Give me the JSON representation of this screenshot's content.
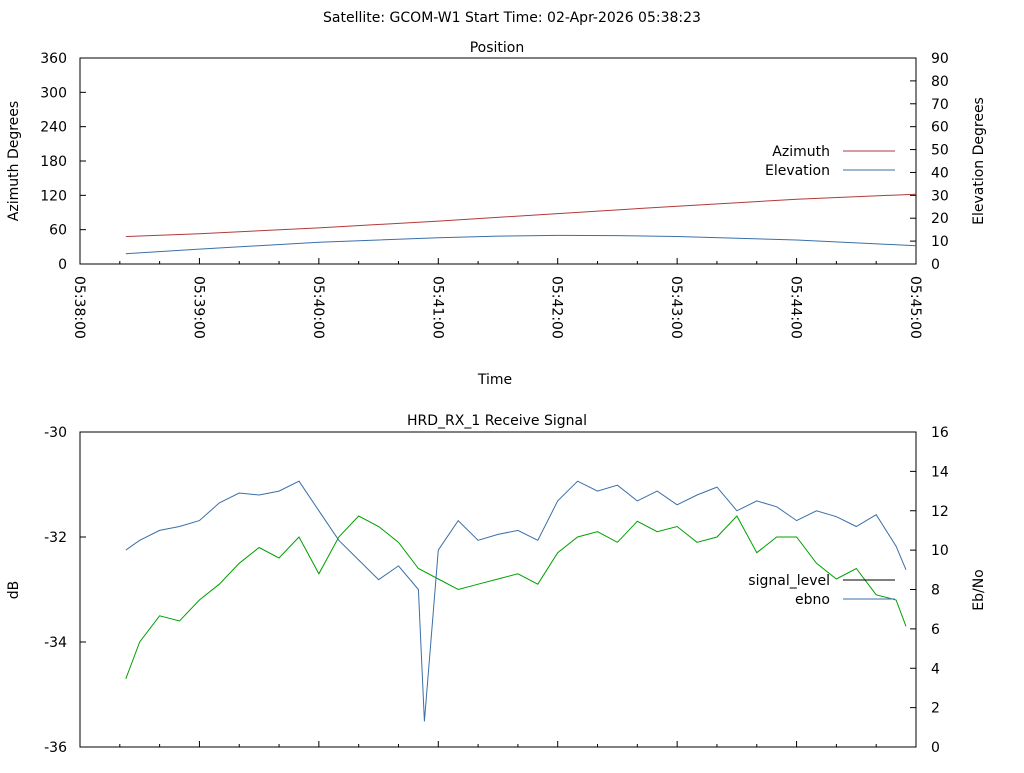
{
  "header": {
    "title": "Satellite: GCOM-W1    Start Time: 02-Apr-2026 05:38:23"
  },
  "colors": {
    "azimuth": "#b23a3a",
    "elevation": "#3a6fa8",
    "signal_level": "#00a000",
    "ebno": "#3a6fa8",
    "legend_signal_level_line": "#000000"
  },
  "chart_data": [
    {
      "type": "line",
      "title": "Position",
      "xlabel": "Time",
      "ylabel": "Azimuth Degrees",
      "y2label": "Elevation Degrees",
      "x_ticks": [
        "05:38:00",
        "05:39:00",
        "05:40:00",
        "05:41:00",
        "05:42:00",
        "05:43:00",
        "05:44:00",
        "05:45:00"
      ],
      "xlim": [
        "05:38:00",
        "05:45:00"
      ],
      "ylim": [
        0,
        360
      ],
      "y_ticks": [
        0,
        60,
        120,
        180,
        240,
        300,
        360
      ],
      "y2lim": [
        0,
        90
      ],
      "y2_ticks": [
        0,
        10,
        20,
        30,
        40,
        50,
        60,
        70,
        80,
        90
      ],
      "grid": false,
      "legend": "right",
      "series": [
        {
          "name": "Azimuth",
          "axis": "left",
          "x": [
            "05:38:23",
            "05:39:00",
            "05:40:00",
            "05:41:00",
            "05:42:00",
            "05:43:00",
            "05:44:00",
            "05:45:00"
          ],
          "values": [
            48,
            53,
            63,
            75,
            88,
            101,
            113,
            122
          ]
        },
        {
          "name": "Elevation",
          "axis": "right",
          "x": [
            "05:38:23",
            "05:39:00",
            "05:40:00",
            "05:41:00",
            "05:41:30",
            "05:42:00",
            "05:42:30",
            "05:43:00",
            "05:44:00",
            "05:45:00"
          ],
          "values": [
            4.5,
            6.5,
            9.5,
            11.5,
            12.2,
            12.5,
            12.4,
            12.0,
            10.5,
            8.0
          ]
        }
      ]
    },
    {
      "type": "line",
      "title": "HRD_RX_1 Receive Signal",
      "xlabel": "",
      "ylabel": "dB",
      "y2label": "Eb/No",
      "ylim": [
        -36,
        -30
      ],
      "y_ticks": [
        -36,
        -34,
        -32,
        -30
      ],
      "y2lim": [
        0,
        16
      ],
      "y2_ticks": [
        0,
        2,
        4,
        6,
        8,
        10,
        12,
        14,
        16
      ],
      "xlim": [
        "05:38:00",
        "05:45:00"
      ],
      "grid": false,
      "legend": "right",
      "series": [
        {
          "name": "signal_level",
          "axis": "left",
          "x": [
            "05:38:23",
            "05:38:30",
            "05:38:40",
            "05:38:50",
            "05:39:00",
            "05:39:10",
            "05:39:20",
            "05:39:30",
            "05:39:40",
            "05:39:50",
            "05:40:00",
            "05:40:10",
            "05:40:20",
            "05:40:30",
            "05:40:40",
            "05:40:50",
            "05:41:00",
            "05:41:10",
            "05:41:20",
            "05:41:30",
            "05:41:40",
            "05:41:50",
            "05:42:00",
            "05:42:10",
            "05:42:20",
            "05:42:30",
            "05:42:40",
            "05:42:50",
            "05:43:00",
            "05:43:10",
            "05:43:20",
            "05:43:30",
            "05:43:40",
            "05:43:50",
            "05:44:00",
            "05:44:10",
            "05:44:20",
            "05:44:30",
            "05:44:40",
            "05:44:50",
            "05:44:55"
          ],
          "values": [
            -34.7,
            -34.0,
            -33.5,
            -33.6,
            -33.2,
            -32.9,
            -32.5,
            -32.2,
            -32.4,
            -32.0,
            -32.7,
            -32.0,
            -31.6,
            -31.8,
            -32.1,
            -32.6,
            -32.8,
            -33.0,
            -32.9,
            -32.8,
            -32.7,
            -32.9,
            -32.3,
            -32.0,
            -31.9,
            -32.1,
            -31.7,
            -31.9,
            -31.8,
            -32.1,
            -32.0,
            -31.6,
            -32.3,
            -32.0,
            -32.0,
            -32.5,
            -32.8,
            -32.6,
            -33.1,
            -33.2,
            -33.7
          ]
        },
        {
          "name": "ebno",
          "axis": "right",
          "x": [
            "05:38:23",
            "05:38:30",
            "05:38:40",
            "05:38:50",
            "05:39:00",
            "05:39:10",
            "05:39:20",
            "05:39:30",
            "05:39:40",
            "05:39:50",
            "05:40:00",
            "05:40:10",
            "05:40:20",
            "05:40:30",
            "05:40:40",
            "05:40:50",
            "05:40:53",
            "05:41:00",
            "05:41:10",
            "05:41:20",
            "05:41:30",
            "05:41:40",
            "05:41:50",
            "05:42:00",
            "05:42:10",
            "05:42:20",
            "05:42:30",
            "05:42:40",
            "05:42:50",
            "05:43:00",
            "05:43:10",
            "05:43:20",
            "05:43:30",
            "05:43:40",
            "05:43:50",
            "05:44:00",
            "05:44:10",
            "05:44:20",
            "05:44:30",
            "05:44:40",
            "05:44:50",
            "05:44:55"
          ],
          "values": [
            10.0,
            10.5,
            11.0,
            11.2,
            11.5,
            12.4,
            12.9,
            12.8,
            13.0,
            13.5,
            12.0,
            10.5,
            9.5,
            8.5,
            9.2,
            8.0,
            1.3,
            10.0,
            11.5,
            10.5,
            10.8,
            11.0,
            10.5,
            12.5,
            13.5,
            13.0,
            13.3,
            12.5,
            13.0,
            12.3,
            12.8,
            13.2,
            12.0,
            12.5,
            12.2,
            11.5,
            12.0,
            11.7,
            11.2,
            11.8,
            10.2,
            9.0
          ]
        }
      ]
    }
  ]
}
